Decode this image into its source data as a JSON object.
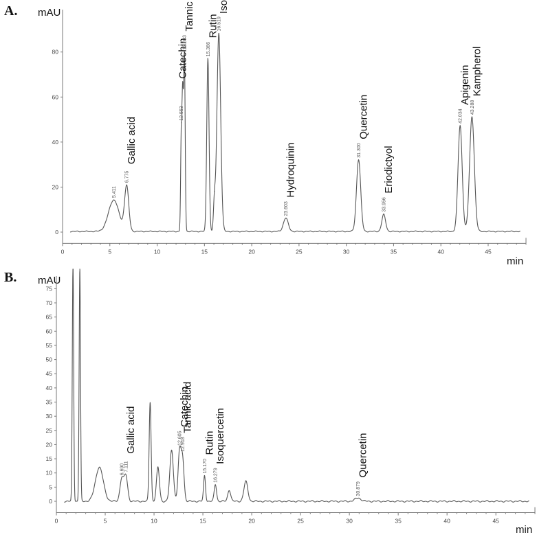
{
  "panels": [
    {
      "label": "A.",
      "ylabel": "mAU",
      "xlabel": "min",
      "yticks": [
        "0",
        "20",
        "40",
        "60",
        "80"
      ],
      "xticks": [
        "0",
        "5",
        "10",
        "15",
        "20",
        "25",
        "30",
        "35",
        "40",
        "45"
      ]
    },
    {
      "label": "B.",
      "ylabel": "mAU",
      "xlabel": "min",
      "yticks": [
        "0",
        "5",
        "10",
        "15",
        "20",
        "25",
        "30",
        "35",
        "40",
        "45",
        "50",
        "55",
        "60",
        "65",
        "70",
        "75"
      ],
      "xticks": [
        "0",
        "5",
        "10",
        "15",
        "20",
        "25",
        "30",
        "35",
        "40",
        "45"
      ]
    }
  ],
  "chart_data": [
    {
      "type": "line",
      "title": "",
      "xlabel": "min",
      "ylabel": "mAU",
      "xlim": [
        0,
        49
      ],
      "ylim": [
        -5,
        97
      ],
      "grid": false,
      "peaks": [
        {
          "name": "",
          "rt": "5.411",
          "x": 5.411,
          "height": 14,
          "width": 0.55
        },
        {
          "name": "Gallic acid",
          "rt": "6.775",
          "x": 6.775,
          "height": 20,
          "width": 0.22
        },
        {
          "name": "",
          "rt": "12.553",
          "x": 12.553,
          "height": 42,
          "width": 0.07
        },
        {
          "name": "Catechin",
          "rt": "",
          "x": 12.7,
          "height": 56,
          "width": 0.07
        },
        {
          "name": "Tannic acid",
          "rt": "12.883",
          "x": 12.883,
          "height": 78,
          "width": 0.08
        },
        {
          "name": "Rutin",
          "rt": "15.366",
          "x": 15.366,
          "height": 77,
          "width": 0.12
        },
        {
          "name": "",
          "rt": "",
          "x": 16.05,
          "height": 12,
          "width": 0.1
        },
        {
          "name": "Isoquercetin",
          "rt": "16.519",
          "x": 16.519,
          "height": 88,
          "width": 0.2
        },
        {
          "name": "Hydroquinin",
          "rt": "23.603",
          "x": 23.603,
          "height": 6,
          "width": 0.25
        },
        {
          "name": "Quercetin",
          "rt": "31.300",
          "x": 31.3,
          "height": 32,
          "width": 0.22
        },
        {
          "name": "Eriodictyol",
          "rt": "33.956",
          "x": 33.956,
          "height": 7.5,
          "width": 0.2
        },
        {
          "name": "Apigenin",
          "rt": "42.034",
          "x": 42.034,
          "height": 47,
          "width": 0.22
        },
        {
          "name": "Kampherol",
          "rt": "43.288",
          "x": 43.288,
          "height": 51,
          "width": 0.25
        }
      ]
    },
    {
      "type": "line",
      "title": "",
      "xlabel": "min",
      "ylabel": "mAU",
      "xlim": [
        0,
        49
      ],
      "ylim": [
        -4,
        78
      ],
      "grid": false,
      "peaks": [
        {
          "name": "",
          "rt": "",
          "x": 1.7,
          "height": 85,
          "width": 0.07
        },
        {
          "name": "",
          "rt": "",
          "x": 2.4,
          "height": 82,
          "width": 0.07
        },
        {
          "name": "",
          "rt": "",
          "x": 4.4,
          "height": 12,
          "width": 0.4
        },
        {
          "name": "",
          "rt": "6.690",
          "x": 6.69,
          "height": 8,
          "width": 0.18
        },
        {
          "name": "Gallic acid",
          "rt": "7.111",
          "x": 7.111,
          "height": 9,
          "width": 0.18
        },
        {
          "name": "",
          "rt": "",
          "x": 9.6,
          "height": 35,
          "width": 0.1
        },
        {
          "name": "",
          "rt": "",
          "x": 10.4,
          "height": 12,
          "width": 0.15
        },
        {
          "name": "",
          "rt": "",
          "x": 11.8,
          "height": 18,
          "width": 0.18
        },
        {
          "name": "Catechin",
          "rt": "12.605",
          "x": 12.605,
          "height": 17,
          "width": 0.15
        },
        {
          "name": "Tannic acid",
          "rt": "12.918",
          "x": 12.918,
          "height": 15,
          "width": 0.15
        },
        {
          "name": "Rutin",
          "rt": "15.170",
          "x": 15.17,
          "height": 9,
          "width": 0.1
        },
        {
          "name": "Isoquercetin",
          "rt": "16.279",
          "x": 16.279,
          "height": 6,
          "width": 0.12
        },
        {
          "name": "",
          "rt": "",
          "x": 17.7,
          "height": 4,
          "width": 0.15
        },
        {
          "name": "",
          "rt": "",
          "x": 19.4,
          "height": 7,
          "width": 0.2
        },
        {
          "name": "Quercetin",
          "rt": "30.879",
          "x": 30.879,
          "height": 1.2,
          "width": 0.3
        }
      ]
    }
  ]
}
